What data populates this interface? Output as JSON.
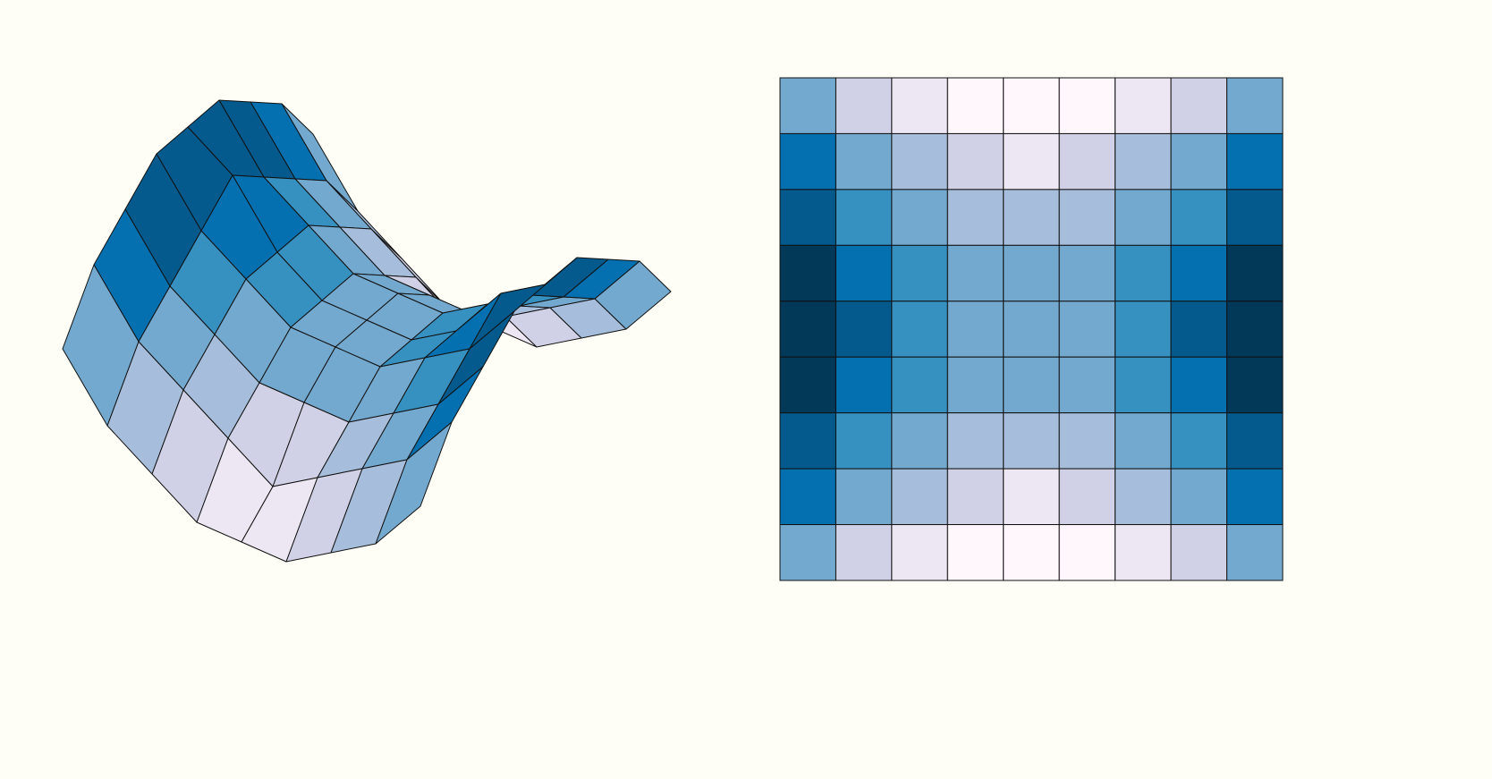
{
  "chart_data": [
    {
      "type": "surface",
      "colors": [
        "#fff7fb",
        "#ece7f2",
        "#d0d1e6",
        "#a6bddb",
        "#74a9cf",
        "#3690c0",
        "#0570b0",
        "#045a8d",
        "#023858"
      ],
      "values": [
        [
          4,
          2,
          1,
          0,
          0,
          0,
          1,
          2,
          4
        ],
        [
          6,
          4,
          3,
          2,
          1,
          2,
          3,
          4,
          6
        ],
        [
          7,
          5,
          4,
          3,
          3,
          3,
          4,
          5,
          7
        ],
        [
          8,
          6,
          5,
          4,
          4,
          4,
          5,
          6,
          8
        ],
        [
          8,
          7,
          5,
          4,
          4,
          4,
          5,
          7,
          8
        ],
        [
          8,
          6,
          5,
          4,
          4,
          4,
          5,
          6,
          8
        ],
        [
          7,
          5,
          4,
          3,
          3,
          3,
          4,
          5,
          7
        ],
        [
          6,
          4,
          3,
          2,
          1,
          2,
          3,
          4,
          6
        ],
        [
          4,
          2,
          1,
          0,
          0,
          0,
          1,
          2,
          4
        ]
      ]
    },
    {
      "type": "heatmap",
      "colors": [
        "#fff7fb",
        "#ece7f2",
        "#d0d1e6",
        "#a6bddb",
        "#74a9cf",
        "#3690c0",
        "#0570b0",
        "#045a8d",
        "#023858"
      ],
      "values": [
        [
          4,
          2,
          1,
          0,
          0,
          0,
          1,
          2,
          4
        ],
        [
          6,
          4,
          3,
          2,
          1,
          2,
          3,
          4,
          6
        ],
        [
          7,
          5,
          4,
          3,
          3,
          3,
          4,
          5,
          7
        ],
        [
          8,
          6,
          5,
          4,
          4,
          4,
          5,
          6,
          8
        ],
        [
          8,
          7,
          5,
          4,
          4,
          4,
          5,
          7,
          8
        ],
        [
          8,
          6,
          5,
          4,
          4,
          4,
          5,
          6,
          8
        ],
        [
          7,
          5,
          4,
          3,
          3,
          3,
          4,
          5,
          7
        ],
        [
          6,
          4,
          3,
          2,
          1,
          2,
          3,
          4,
          6
        ],
        [
          4,
          2,
          1,
          0,
          0,
          0,
          1,
          2,
          4
        ]
      ]
    }
  ]
}
